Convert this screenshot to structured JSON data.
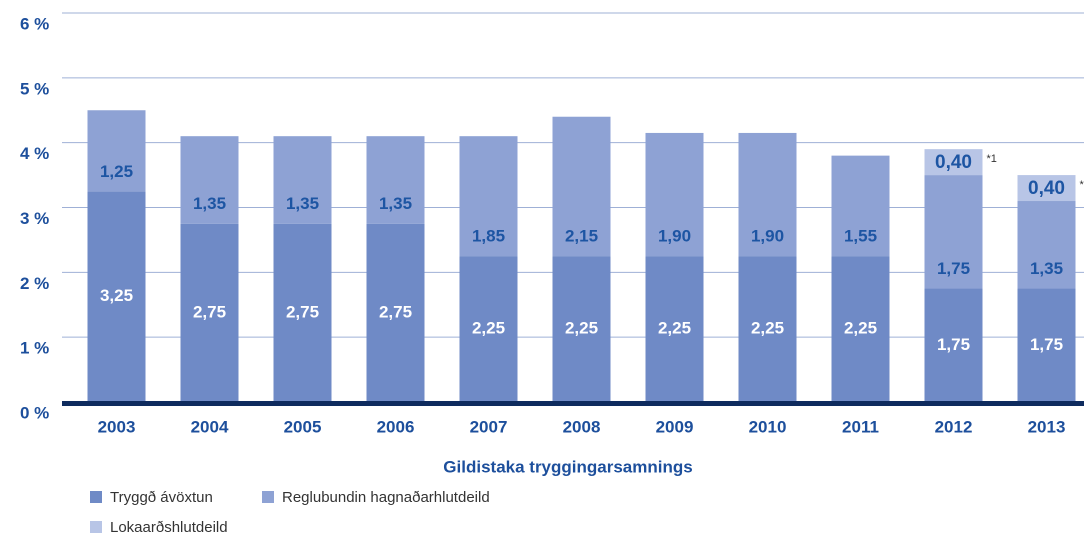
{
  "chart_data": {
    "type": "stacked_bar",
    "x_label": "Gildistaka tryggingarsamnings",
    "categories": [
      "2003",
      "2004",
      "2005",
      "2006",
      "2007",
      "2008",
      "2009",
      "2010",
      "2011",
      "2012",
      "2013"
    ],
    "series": [
      {
        "name": "Tryggð ávöxtun",
        "color": "#6f8ac6",
        "values": [
          3.25,
          2.75,
          2.75,
          2.75,
          2.25,
          2.25,
          2.25,
          2.25,
          2.25,
          1.75,
          1.75
        ],
        "value_labels": [
          "3,25",
          "2,75",
          "2,75",
          "2,75",
          "2,25",
          "2,25",
          "2,25",
          "2,25",
          "2,25",
          "1,75",
          "1,75"
        ]
      },
      {
        "name": "Reglubundin hagnaðarhlutdeild",
        "color": "#8ea2d4",
        "values": [
          1.25,
          1.35,
          1.35,
          1.35,
          1.85,
          2.15,
          1.9,
          1.9,
          1.55,
          1.75,
          1.35
        ],
        "value_labels": [
          "1,25",
          "1,35",
          "1,35",
          "1,35",
          "1,85",
          "2,15",
          "1,90",
          "1,90",
          "1,55",
          "1,75",
          "1,35"
        ]
      },
      {
        "name": "Lokaarðshlutdeild",
        "color": "#b8c5e6",
        "values": [
          null,
          null,
          null,
          null,
          null,
          null,
          null,
          null,
          null,
          0.4,
          0.4
        ],
        "value_labels": [
          null,
          null,
          null,
          null,
          null,
          null,
          null,
          null,
          null,
          "0,40",
          "0,40"
        ]
      }
    ],
    "annotations": [
      "*1",
      "*"
    ],
    "ylim": [
      0,
      6
    ],
    "yticks": [
      {
        "value": 0,
        "label": "0 %"
      },
      {
        "value": 1,
        "label": "1 %"
      },
      {
        "value": 2,
        "label": "2 %"
      },
      {
        "value": 3,
        "label": "3 %"
      },
      {
        "value": 4,
        "label": "4 %"
      },
      {
        "value": 5,
        "label": "5 %"
      },
      {
        "value": 6,
        "label": "6 %"
      }
    ],
    "grid": true
  }
}
